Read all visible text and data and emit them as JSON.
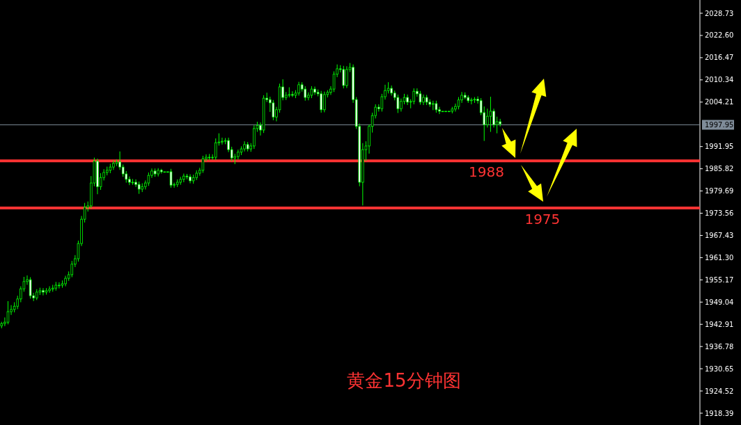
{
  "chart_data": {
    "type": "candlestick",
    "title": "黄金15分钟图",
    "color": "#00ff00",
    "categories": [
      null,
      null,
      null,
      null,
      null,
      null,
      null,
      null,
      null,
      null,
      null,
      null,
      null,
      null,
      null,
      null,
      null,
      null,
      null,
      null,
      null,
      null,
      null,
      null,
      null,
      null,
      null,
      null,
      null,
      null,
      null,
      null,
      null,
      null,
      null,
      null,
      null,
      null,
      null,
      null,
      null,
      null,
      null,
      null,
      null,
      null,
      null,
      null,
      null,
      null,
      null,
      null,
      null,
      null,
      null,
      null,
      null,
      null,
      null,
      null,
      null,
      null,
      null,
      null,
      null,
      null,
      null,
      null,
      null,
      null,
      null,
      null,
      null,
      null,
      null,
      null,
      null,
      null,
      null,
      null,
      null,
      null,
      null,
      null,
      null,
      null,
      null,
      null,
      null,
      null,
      null,
      null,
      null,
      null,
      null,
      null,
      null,
      null,
      null,
      null,
      null,
      null,
      null,
      null,
      null,
      null,
      null,
      null,
      null,
      null,
      null,
      null,
      null,
      null,
      null,
      null,
      null,
      null,
      null,
      null,
      null,
      null,
      null,
      null,
      null,
      null,
      null,
      null,
      null,
      null,
      null,
      null,
      null,
      null,
      null,
      null,
      null,
      null,
      null,
      null,
      null,
      null,
      null,
      null,
      null,
      null,
      null,
      null,
      null,
      null,
      null,
      null,
      null,
      null,
      null,
      null,
      null,
      null,
      null,
      null,
      null,
      null,
      null,
      null,
      null,
      null,
      null,
      null,
      null,
      null,
      null,
      null,
      null,
      null,
      null,
      null,
      null,
      null,
      null,
      null,
      null,
      null,
      null,
      null,
      null,
      null,
      null,
      null,
      null,
      null,
      null,
      null,
      null,
      null,
      null,
      null,
      null,
      null,
      null,
      null,
      null,
      null,
      null,
      null,
      null,
      null,
      null,
      null,
      null,
      null,
      null,
      null,
      null,
      null,
      null,
      null,
      null,
      null,
      null
    ],
    "ohlc": [
      [
        1942.5,
        1943.6,
        1941.8,
        1943.1
      ],
      [
        1943.1,
        1944.8,
        1942.4,
        1943.5
      ],
      [
        1943.5,
        1949.3,
        1942.9,
        1946.4
      ],
      [
        1946.4,
        1948.2,
        1945.5,
        1947.0
      ],
      [
        1947.0,
        1949.0,
        1946.2,
        1947.9
      ],
      [
        1947.9,
        1950.8,
        1947.1,
        1949.9
      ],
      [
        1949.9,
        1953.4,
        1949.0,
        1952.7
      ],
      [
        1952.7,
        1956.0,
        1951.9,
        1954.7
      ],
      [
        1954.7,
        1956.4,
        1953.8,
        1955.2
      ],
      [
        1955.2,
        1955.9,
        1950.0,
        1950.8
      ],
      [
        1950.8,
        1951.6,
        1949.3,
        1950.2
      ],
      [
        1950.2,
        1952.6,
        1949.6,
        1951.8
      ],
      [
        1951.8,
        1953.0,
        1951.0,
        1952.2
      ],
      [
        1952.2,
        1952.9,
        1950.9,
        1951.8
      ],
      [
        1951.8,
        1952.9,
        1951.1,
        1952.2
      ],
      [
        1952.2,
        1953.4,
        1951.6,
        1952.6
      ],
      [
        1952.6,
        1953.8,
        1951.9,
        1952.9
      ],
      [
        1952.9,
        1954.6,
        1952.2,
        1953.7
      ],
      [
        1953.7,
        1954.5,
        1952.8,
        1953.7
      ],
      [
        1953.7,
        1955.0,
        1953.0,
        1954.1
      ],
      [
        1954.1,
        1956.3,
        1953.4,
        1955.6
      ],
      [
        1955.6,
        1957.5,
        1954.9,
        1956.6
      ],
      [
        1956.6,
        1960.4,
        1955.9,
        1959.5
      ],
      [
        1959.5,
        1962.0,
        1958.7,
        1961.0
      ],
      [
        1961.0,
        1966.0,
        1960.2,
        1965.2
      ],
      [
        1965.2,
        1972.8,
        1964.5,
        1971.9
      ],
      [
        1971.9,
        1976.4,
        1971.0,
        1975.2
      ],
      [
        1975.2,
        1976.8,
        1974.0,
        1975.6
      ],
      [
        1975.6,
        1983.8,
        1974.9,
        1981.9
      ],
      [
        1981.9,
        1988.9,
        1981.0,
        1987.9
      ],
      [
        1987.9,
        1988.6,
        1978.8,
        1980.9
      ],
      [
        1980.9,
        1984.6,
        1980.0,
        1983.4
      ],
      [
        1983.4,
        1985.7,
        1982.6,
        1984.8
      ],
      [
        1984.8,
        1986.4,
        1984.0,
        1985.4
      ],
      [
        1985.4,
        1987.2,
        1984.6,
        1986.3
      ],
      [
        1986.3,
        1988.1,
        1985.5,
        1987.3
      ],
      [
        1987.3,
        1988.4,
        1986.6,
        1987.7
      ],
      [
        1987.7,
        1990.6,
        1985.5,
        1986.3
      ],
      [
        1986.3,
        1987.0,
        1983.6,
        1984.4
      ],
      [
        1984.4,
        1985.2,
        1982.0,
        1982.9
      ],
      [
        1982.9,
        1983.7,
        1981.3,
        1982.1
      ],
      [
        1982.1,
        1983.0,
        1981.4,
        1982.1
      ],
      [
        1982.1,
        1982.9,
        1980.8,
        1981.5
      ],
      [
        1981.5,
        1982.3,
        1978.9,
        1980.2
      ],
      [
        1980.2,
        1981.8,
        1979.4,
        1980.9
      ],
      [
        1980.9,
        1982.6,
        1980.1,
        1981.9
      ],
      [
        1981.9,
        1984.8,
        1981.1,
        1984.0
      ],
      [
        1984.0,
        1985.9,
        1983.3,
        1985.2
      ],
      [
        1985.2,
        1985.9,
        1983.6,
        1984.4
      ],
      [
        1984.4,
        1986.0,
        1983.7,
        1985.4
      ],
      [
        1985.4,
        1985.8,
        1984.5,
        1985.0
      ],
      [
        1985.0,
        1985.0,
        1985.0,
        1985.0
      ],
      [
        1985.0,
        1985.0,
        1985.0,
        1985.0
      ],
      [
        1985.0,
        1985.8,
        1980.6,
        1981.3
      ],
      [
        1981.3,
        1982.0,
        1980.6,
        1981.5
      ],
      [
        1981.5,
        1982.9,
        1980.8,
        1982.1
      ],
      [
        1982.1,
        1983.6,
        1981.4,
        1982.9
      ],
      [
        1982.9,
        1984.5,
        1982.1,
        1983.8
      ],
      [
        1983.8,
        1984.4,
        1982.9,
        1983.6
      ],
      [
        1983.6,
        1984.3,
        1981.8,
        1982.5
      ],
      [
        1982.5,
        1984.2,
        1981.7,
        1983.4
      ],
      [
        1983.4,
        1985.4,
        1982.7,
        1984.6
      ],
      [
        1984.6,
        1986.1,
        1983.9,
        1985.4
      ],
      [
        1985.4,
        1989.4,
        1984.7,
        1988.6
      ],
      [
        1988.6,
        1989.8,
        1987.9,
        1989.0
      ],
      [
        1989.0,
        1989.9,
        1988.2,
        1989.0
      ],
      [
        1989.0,
        1989.8,
        1988.3,
        1989.0
      ],
      [
        1989.0,
        1994.2,
        1988.2,
        1993.0
      ],
      [
        1993.0,
        1995.6,
        1992.2,
        1993.2
      ],
      [
        1993.2,
        1994.4,
        1992.5,
        1993.4
      ],
      [
        1993.4,
        1994.3,
        1992.6,
        1993.6
      ],
      [
        1993.6,
        1994.4,
        1990.4,
        1991.1
      ],
      [
        1991.1,
        1991.9,
        1987.9,
        1988.8
      ],
      [
        1988.8,
        1990.0,
        1987.1,
        1989.2
      ],
      [
        1989.2,
        1991.1,
        1988.4,
        1990.4
      ],
      [
        1990.4,
        1992.0,
        1989.6,
        1991.3
      ],
      [
        1991.3,
        1993.4,
        1990.6,
        1992.5
      ],
      [
        1992.5,
        1993.2,
        1990.6,
        1991.3
      ],
      [
        1991.3,
        1992.9,
        1990.5,
        1992.1
      ],
      [
        1992.1,
        1997.8,
        1991.3,
        1996.9
      ],
      [
        1996.9,
        1998.8,
        1996.0,
        1997.8
      ],
      [
        1997.8,
        1998.6,
        1995.0,
        1996.5
      ],
      [
        1996.5,
        2006.1,
        1995.7,
        2005.3
      ],
      [
        2005.3,
        2006.8,
        2004.2,
        2004.9
      ],
      [
        2004.9,
        2005.7,
        2001.5,
        2004.0
      ],
      [
        2004.0,
        2004.8,
        1999.2,
        2000.1
      ],
      [
        2000.1,
        2002.9,
        1998.9,
        2002.1
      ],
      [
        2002.1,
        2009.3,
        2001.3,
        2008.4
      ],
      [
        2008.4,
        2010.5,
        2004.7,
        2005.5
      ],
      [
        2005.5,
        2007.0,
        2004.8,
        2006.1
      ],
      [
        2006.1,
        2008.3,
        2005.5,
        2006.3
      ],
      [
        2006.3,
        2007.2,
        2005.6,
        2006.1
      ],
      [
        2006.1,
        2007.5,
        2005.3,
        2006.7
      ],
      [
        2006.7,
        2009.8,
        2006.0,
        2009.0
      ],
      [
        2009.0,
        2009.7,
        2007.1,
        2007.8
      ],
      [
        2007.8,
        2008.6,
        2004.6,
        2005.5
      ],
      [
        2005.5,
        2006.9,
        2004.7,
        2006.1
      ],
      [
        2006.1,
        2008.6,
        2005.3,
        2007.8
      ],
      [
        2007.8,
        2008.5,
        2006.2,
        2006.9
      ],
      [
        2006.9,
        2007.7,
        2005.8,
        2006.5
      ],
      [
        2006.5,
        2007.3,
        2001.3,
        2002.1
      ],
      [
        2002.1,
        2007.1,
        2001.4,
        2006.3
      ],
      [
        2006.3,
        2007.5,
        2005.5,
        2006.9
      ],
      [
        2006.9,
        2008.6,
        2006.2,
        2007.8
      ],
      [
        2007.8,
        2012.7,
        2007.0,
        2011.9
      ],
      [
        2011.9,
        2014.6,
        2011.1,
        2013.4
      ],
      [
        2013.4,
        2014.4,
        2012.4,
        2013.2
      ],
      [
        2013.2,
        2014.2,
        2008.0,
        2008.8
      ],
      [
        2008.8,
        2014.1,
        2008.1,
        2013.2
      ],
      [
        2013.2,
        2015.0,
        2012.5,
        2013.8
      ],
      [
        2013.8,
        2014.6,
        2004.0,
        2004.9
      ],
      [
        2004.9,
        2005.6,
        1996.8,
        1997.5
      ],
      [
        1997.5,
        1998.3,
        1981.0,
        1982.1
      ],
      [
        1982.1,
        1992.9,
        1975.7,
        1991.1
      ],
      [
        1991.1,
        1993.4,
        1988.0,
        1992.1
      ],
      [
        1992.1,
        1998.0,
        1990.0,
        1997.5
      ],
      [
        1997.5,
        2001.3,
        1995.8,
        2000.5
      ],
      [
        2000.5,
        2003.6,
        1999.7,
        2002.8
      ],
      [
        2002.8,
        2003.6,
        2001.6,
        2002.4
      ],
      [
        2002.4,
        2006.5,
        2001.6,
        2005.7
      ],
      [
        2005.7,
        2009.0,
        2004.9,
        2007.4
      ],
      [
        2007.4,
        2009.7,
        2006.6,
        2008.0
      ],
      [
        2008.0,
        2008.8,
        2006.0,
        2006.7
      ],
      [
        2006.7,
        2007.4,
        2004.7,
        2005.5
      ],
      [
        2005.5,
        2006.3,
        2001.2,
        2002.4
      ],
      [
        2002.4,
        2005.2,
        2001.6,
        2004.4
      ],
      [
        2004.4,
        2006.5,
        2003.6,
        2005.5
      ],
      [
        2005.5,
        2006.3,
        2003.4,
        2004.2
      ],
      [
        2004.2,
        2005.0,
        2002.5,
        2004.4
      ],
      [
        2004.4,
        2008.0,
        2003.6,
        2007.2
      ],
      [
        2007.2,
        2008.0,
        2005.7,
        2006.5
      ],
      [
        2006.5,
        2007.3,
        2003.5,
        2004.2
      ],
      [
        2004.2,
        2006.3,
        2003.4,
        2005.5
      ],
      [
        2005.5,
        2006.2,
        2003.4,
        2004.2
      ],
      [
        2004.2,
        2005.0,
        2002.9,
        2003.6
      ],
      [
        2003.6,
        2004.6,
        2002.0,
        2003.8
      ],
      [
        2003.8,
        2004.6,
        2001.3,
        2002.1
      ],
      [
        2002.1,
        2002.9,
        2000.9,
        2001.7
      ],
      [
        2001.7,
        2001.7,
        2001.7,
        2001.7
      ],
      [
        2001.7,
        2001.7,
        2001.7,
        2001.7
      ],
      [
        2001.7,
        2001.7,
        2001.7,
        2001.7
      ],
      [
        2001.7,
        2002.9,
        2001.1,
        2002.3
      ],
      [
        2002.3,
        2003.8,
        2001.6,
        2003.0
      ],
      [
        2003.0,
        2005.6,
        2002.2,
        2004.8
      ],
      [
        2004.8,
        2007.0,
        2004.0,
        2006.1
      ],
      [
        2006.1,
        2006.9,
        2005.0,
        2005.5
      ],
      [
        2005.5,
        2006.1,
        2004.0,
        2004.6
      ],
      [
        2004.6,
        2005.4,
        2003.6,
        2004.8
      ],
      [
        2004.8,
        2005.6,
        2004.0,
        2005.0
      ],
      [
        2005.0,
        2005.8,
        2003.8,
        2004.6
      ],
      [
        2004.6,
        2005.3,
        2000.6,
        2001.3
      ],
      [
        2001.3,
        2003.0,
        1993.5,
        1998.0
      ],
      [
        1998.0,
        2002.4,
        1997.2,
        2000.3
      ],
      [
        2000.3,
        2005.7,
        1996.0,
        2001.7
      ],
      [
        2001.7,
        2002.4,
        1997.2,
        1998.0
      ],
      [
        1998.0,
        2000.2,
        1995.6,
        1998.8
      ],
      [
        1998.8,
        1999.6,
        1997.5,
        1998.2
      ],
      null,
      null,
      null,
      null,
      null,
      null,
      null,
      null,
      null,
      null,
      null,
      null,
      null,
      null,
      null,
      null,
      null,
      null,
      null,
      null,
      null,
      null,
      null,
      null,
      null,
      null,
      null,
      null,
      null,
      null,
      null,
      null,
      null,
      null,
      null,
      null,
      null,
      null,
      null,
      null,
      null,
      null,
      null,
      null,
      null,
      null,
      null,
      null,
      null,
      null,
      null,
      null,
      null,
      null,
      null,
      null,
      null,
      null,
      null,
      null,
      null,
      null
    ],
    "ylim": [
      1915.13,
      2032.38
    ],
    "yticks": [
      2028.73,
      {
        "value": 2022.6,
        "label": "2022.60"
      },
      2016.47,
      2010.34,
      2004.21,
      1991.95,
      1985.82,
      1979.69,
      1973.56,
      1967.43,
      {
        "value": 1961.3,
        "label": "1961.30"
      },
      1955.17,
      1949.04,
      1942.91,
      1936.78,
      1930.65,
      1924.52,
      1918.39
    ],
    "ref_lines": [
      {
        "axis": "y",
        "value": 1997.95,
        "label": "1997.95",
        "color": "#7f8c99"
      },
      {
        "axis": "y",
        "value": 1988,
        "label": "1988",
        "color": "#ff3333"
      },
      {
        "axis": "y",
        "value": 1975,
        "label": "1975",
        "color": "#ff3333"
      }
    ],
    "tick_labels": "y"
  }
}
